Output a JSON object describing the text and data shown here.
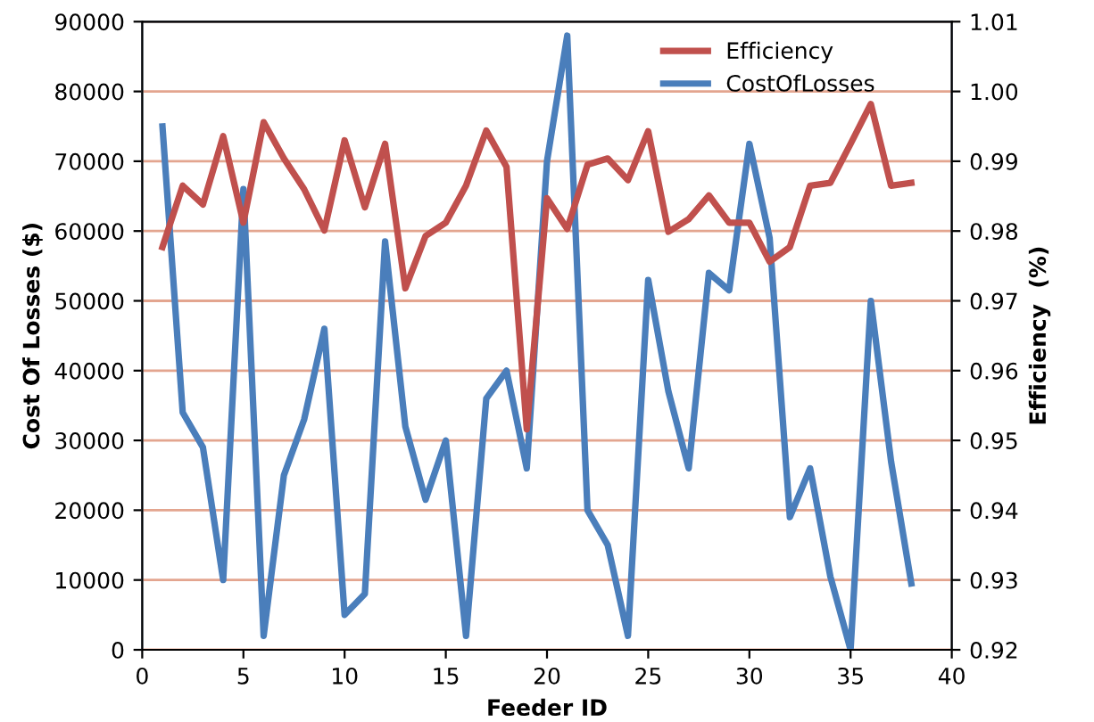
{
  "chart_data": {
    "type": "line",
    "xlabel": "Feeder ID",
    "ylabel": "Cost Of Losses ($)",
    "y2label": "Efficiency  (%)",
    "x": [
      1,
      2,
      3,
      4,
      5,
      6,
      7,
      8,
      9,
      10,
      11,
      12,
      13,
      14,
      15,
      16,
      17,
      18,
      19,
      20,
      21,
      22,
      23,
      24,
      25,
      26,
      27,
      28,
      29,
      30,
      31,
      32,
      33,
      34,
      35,
      36,
      37,
      38
    ],
    "series": [
      {
        "name": "Efficiency",
        "color": "#c0504d",
        "axis": "y2",
        "values": [
          0.9777,
          0.9865,
          0.9838,
          0.9936,
          0.9812,
          0.9956,
          0.9904,
          0.986,
          0.9801,
          0.993,
          0.9834,
          0.9925,
          0.9718,
          0.9793,
          0.9812,
          0.9865,
          0.9944,
          0.9892,
          0.9516,
          0.9847,
          0.9803,
          0.9895,
          0.9904,
          0.9873,
          0.9943,
          0.9799,
          0.9817,
          0.9851,
          0.9812,
          0.9812,
          0.9756,
          0.9777,
          0.9865,
          0.9869,
          0.9925,
          0.9982,
          0.9865,
          0.9869
        ]
      },
      {
        "name": "CostOfLosses",
        "color": "#4a7ebb",
        "axis": "y",
        "values": [
          75000,
          34000,
          29000,
          10000,
          66000,
          2000,
          25000,
          33000,
          46000,
          5000,
          8000,
          58500,
          32000,
          21500,
          30000,
          2000,
          36000,
          40000,
          26000,
          70000,
          88000,
          20000,
          15000,
          2000,
          53000,
          37000,
          26000,
          54000,
          51500,
          72500,
          59000,
          19000,
          26000,
          10500,
          0,
          50000,
          27000,
          9500
        ]
      }
    ],
    "xlim": [
      0,
      40
    ],
    "xticks": [
      0,
      5,
      10,
      15,
      20,
      25,
      30,
      35,
      40
    ],
    "ylim": [
      0,
      90000
    ],
    "yticks": [
      0,
      10000,
      20000,
      30000,
      40000,
      50000,
      60000,
      70000,
      80000,
      90000
    ],
    "y2lim": [
      0.92,
      1.01
    ],
    "y2ticks": [
      0.92,
      0.93,
      0.94,
      0.95,
      0.96,
      0.97,
      0.98,
      0.99,
      {
        "value": 1.0,
        "label": "1.00"
      },
      1.01
    ],
    "grid": "y",
    "legend": "top right",
    "marker": "none",
    "line_style": "solid"
  }
}
